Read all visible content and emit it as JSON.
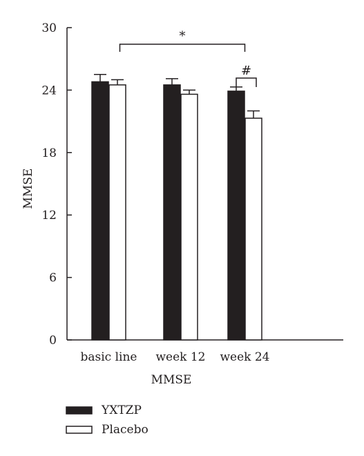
{
  "chart_data": {
    "type": "bar",
    "categories": [
      "basic line",
      "week 12",
      "week 24"
    ],
    "series": [
      {
        "name": "YXTZP",
        "values": [
          24.8,
          24.5,
          23.9
        ],
        "errors": [
          0.7,
          0.6,
          0.4
        ],
        "color": "#231f20"
      },
      {
        "name": "Placebo",
        "values": [
          24.5,
          23.6,
          21.3
        ],
        "errors": [
          0.5,
          0.4,
          0.7
        ],
        "color": "#ffffff"
      }
    ],
    "xlabel": "MMSE",
    "ylabel": "MMSE",
    "ylim": [
      0,
      30
    ],
    "yticks": [
      0,
      6,
      12,
      18,
      24,
      30
    ],
    "grid": false,
    "legend_position": "bottom-left",
    "annotations": [
      {
        "text": "*",
        "from": "basic line",
        "to": "week 24"
      },
      {
        "text": "#",
        "category": "week 24"
      }
    ]
  }
}
